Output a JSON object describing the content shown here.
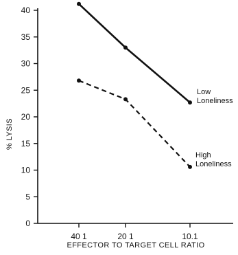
{
  "chart_data": {
    "type": "line",
    "categories": [
      "40 1",
      "20 1",
      "10.1"
    ],
    "x": [
      40,
      20,
      10
    ],
    "series": [
      {
        "name": "Low Loneliness",
        "label_lines": [
          "Low",
          "Loneliness"
        ],
        "values": [
          41.2,
          33.0,
          22.7
        ],
        "style": "solid",
        "color": "#111111"
      },
      {
        "name": "High Loneliness",
        "label_lines": [
          "High",
          "Loneliness"
        ],
        "values": [
          26.8,
          23.3,
          10.6
        ],
        "style": "dashed",
        "color": "#111111"
      }
    ],
    "title": "",
    "xlabel": "EFFECTOR TO TARGET CELL RATIO",
    "ylabel": "% LYSIS",
    "ylim": [
      0,
      40
    ],
    "yticks": [
      0,
      5,
      10,
      15,
      20,
      25,
      30,
      35,
      40
    ],
    "grid": false,
    "legend": "inline labels at right end of lines"
  }
}
